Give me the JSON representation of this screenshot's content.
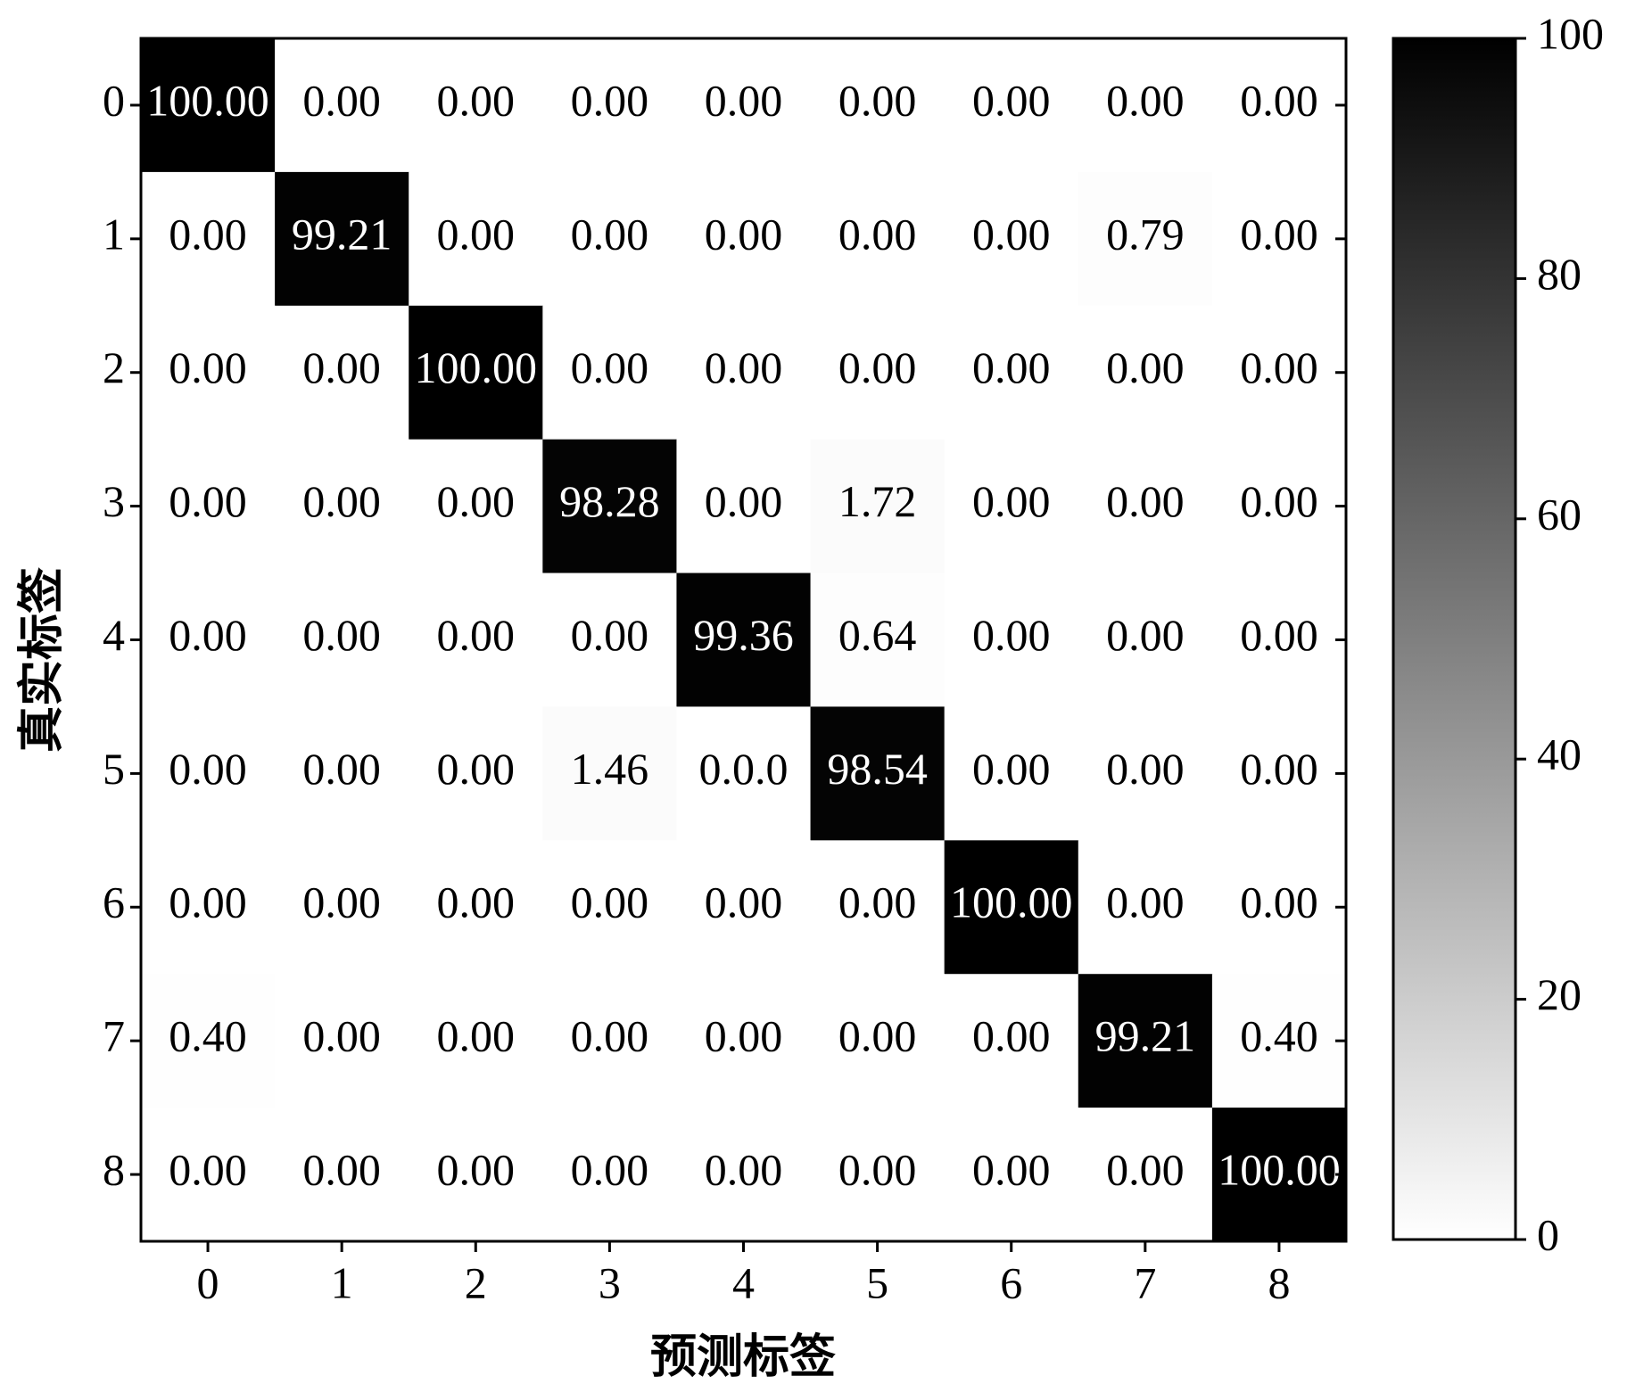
{
  "chart_data": {
    "type": "heatmap",
    "xlabel": "预测标签",
    "ylabel": "真实标签",
    "x_categories": [
      "0",
      "1",
      "2",
      "3",
      "4",
      "5",
      "6",
      "7",
      "8"
    ],
    "y_categories": [
      "0",
      "1",
      "2",
      "3",
      "4",
      "5",
      "6",
      "7",
      "8"
    ],
    "values": [
      [
        100,
        0,
        0,
        0,
        0,
        0,
        0,
        0,
        0
      ],
      [
        0,
        99.21,
        0,
        0,
        0,
        0,
        0,
        0.79,
        0
      ],
      [
        0,
        0,
        100,
        0,
        0,
        0,
        0,
        0,
        0
      ],
      [
        0,
        0,
        0,
        98.28,
        0,
        1.72,
        0,
        0,
        0
      ],
      [
        0,
        0,
        0,
        0,
        99.36,
        0.64,
        0,
        0,
        0
      ],
      [
        0,
        0,
        0,
        1.46,
        0,
        98.54,
        0,
        0,
        0
      ],
      [
        0,
        0,
        0,
        0,
        0,
        0,
        100,
        0,
        0
      ],
      [
        0.4,
        0,
        0,
        0,
        0,
        0,
        0,
        99.21,
        0.4
      ],
      [
        0,
        0,
        0,
        0,
        0,
        0,
        0,
        0,
        100
      ]
    ],
    "value_labels": [
      [
        "100.00",
        "0.00",
        "0.00",
        "0.00",
        "0.00",
        "0.00",
        "0.00",
        "0.00",
        "0.00"
      ],
      [
        "0.00",
        "99.21",
        "0.00",
        "0.00",
        "0.00",
        "0.00",
        "0.00",
        "0.79",
        "0.00"
      ],
      [
        "0.00",
        "0.00",
        "100.00",
        "0.00",
        "0.00",
        "0.00",
        "0.00",
        "0.00",
        "0.00"
      ],
      [
        "0.00",
        "0.00",
        "0.00",
        "98.28",
        "0.00",
        "1.72",
        "0.00",
        "0.00",
        "0.00"
      ],
      [
        "0.00",
        "0.00",
        "0.00",
        "0.00",
        "99.36",
        "0.64",
        "0.00",
        "0.00",
        "0.00"
      ],
      [
        "0.00",
        "0.00",
        "0.00",
        "1.46",
        "0.0.0",
        "98.54",
        "0.00",
        "0.00",
        "0.00"
      ],
      [
        "0.00",
        "0.00",
        "0.00",
        "0.00",
        "0.00",
        "0.00",
        "100.00",
        "0.00",
        "0.00"
      ],
      [
        "0.40",
        "0.00",
        "0.00",
        "0.00",
        "0.00",
        "0.00",
        "0.00",
        "99.21",
        "0.40"
      ],
      [
        "0.00",
        "0.00",
        "0.00",
        "0.00",
        "0.00",
        "0.00",
        "0.00",
        "0.00",
        "100.00"
      ]
    ],
    "clim": [
      0,
      100
    ],
    "cticks": [
      0,
      20,
      40,
      60,
      80,
      100
    ],
    "colormap": [
      "#ffffff",
      "#000000"
    ]
  }
}
